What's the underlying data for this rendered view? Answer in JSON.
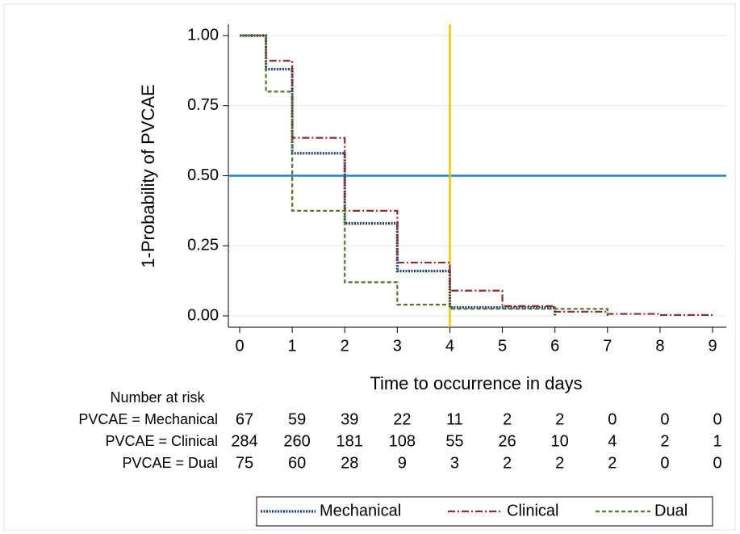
{
  "chart_data": {
    "type": "step",
    "y_label": "1-Probability of PVCAE",
    "x_label": "Time to occurrence in days",
    "xlim": [
      0,
      9
    ],
    "ylim": [
      0,
      1
    ],
    "xticks": [
      0,
      1,
      2,
      3,
      4,
      5,
      6,
      7,
      8,
      9
    ],
    "yticks": [
      {
        "value": 0,
        "label": "0.00"
      },
      {
        "value": 0.25,
        "label": "0.25"
      },
      {
        "value": 0.5,
        "label": "0.50"
      },
      {
        "value": 0.75,
        "label": "0.75"
      },
      {
        "value": 1,
        "label": "1.00"
      }
    ],
    "grid": true,
    "reference_lines": [
      {
        "axis": "y",
        "value": 0.5,
        "color": "#1a86bd"
      },
      {
        "axis": "x",
        "value": 4,
        "color": "#f2c500"
      }
    ],
    "series": [
      {
        "name": "Mechanical",
        "color": "#1f3c7c",
        "style": "dotted",
        "x": [
          0,
          0.5,
          1,
          2,
          3,
          4,
          6
        ],
        "values": [
          1,
          0.88,
          0.58,
          0.33,
          0.16,
          0.03,
          0
        ]
      },
      {
        "name": "Clinical",
        "color": "#8b2d2d",
        "style": "dashdot",
        "x": [
          0,
          0.5,
          1,
          2,
          3,
          4,
          5,
          6,
          7,
          8,
          9
        ],
        "values": [
          1,
          0.91,
          0.635,
          0.375,
          0.19,
          0.09,
          0.035,
          0.015,
          0.007,
          0.003,
          0.003
        ]
      },
      {
        "name": "Dual",
        "color": "#4d7a2c",
        "style": "dashed",
        "x": [
          0,
          0.5,
          1,
          2,
          3,
          4,
          7
        ],
        "values": [
          1,
          0.8,
          0.375,
          0.12,
          0.04,
          0.025,
          0
        ]
      }
    ],
    "legend": "bottom",
    "risk_table": {
      "title": "Number at risk",
      "rows": [
        {
          "label": "PVCAE = Mechanical",
          "values": [
            67,
            59,
            39,
            22,
            11,
            2,
            2,
            0,
            0,
            0
          ]
        },
        {
          "label": "PVCAE = Clinical",
          "values": [
            284,
            260,
            181,
            108,
            55,
            26,
            10,
            4,
            2,
            1
          ]
        },
        {
          "label": "PVCAE = Dual",
          "values": [
            75,
            60,
            28,
            9,
            3,
            2,
            2,
            2,
            0,
            0
          ]
        }
      ]
    }
  }
}
